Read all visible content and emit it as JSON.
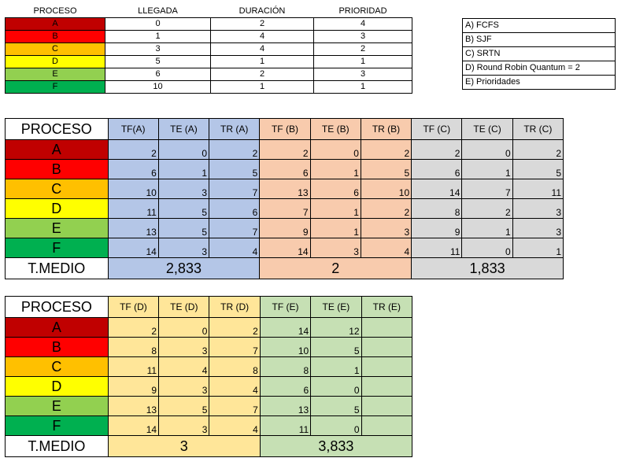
{
  "info_table": {
    "headers": [
      "PROCESO",
      "LLEGADA",
      "DURACIÓN",
      "PRIORIDAD"
    ],
    "rows": [
      {
        "proc": "A",
        "llegada": "0",
        "duracion": "2",
        "prioridad": "4",
        "color": "#c00000"
      },
      {
        "proc": "B",
        "llegada": "1",
        "duracion": "4",
        "prioridad": "3",
        "color": "#ff0000"
      },
      {
        "proc": "C",
        "llegada": "3",
        "duracion": "4",
        "prioridad": "2",
        "color": "#ffc000"
      },
      {
        "proc": "D",
        "llegada": "5",
        "duracion": "1",
        "prioridad": "1",
        "color": "#ffff00"
      },
      {
        "proc": "E",
        "llegada": "6",
        "duracion": "2",
        "prioridad": "3",
        "color": "#92d050"
      },
      {
        "proc": "F",
        "llegada": "10",
        "duracion": "1",
        "prioridad": "1",
        "color": "#00b050"
      }
    ]
  },
  "legend": [
    "A) FCFS",
    "B) SJF",
    "C) SRTN",
    "D) Round Robin Quantum = 2",
    "E) Prioridades"
  ],
  "table1": {
    "proc_header": "PROCESO",
    "headers": [
      "TF(A)",
      "TE (A)",
      "TR (A)",
      "TF (B)",
      "TE (B)",
      "TR (B)",
      "TF (C)",
      "TE (C)",
      "TR (C)"
    ],
    "rows": [
      {
        "proc": "A",
        "vals": [
          "2",
          "0",
          "2",
          "2",
          "0",
          "2",
          "2",
          "0",
          "2"
        ]
      },
      {
        "proc": "B",
        "vals": [
          "6",
          "1",
          "5",
          "6",
          "1",
          "5",
          "6",
          "1",
          "5"
        ]
      },
      {
        "proc": "C",
        "vals": [
          "10",
          "3",
          "7",
          "13",
          "6",
          "10",
          "14",
          "7",
          "11"
        ]
      },
      {
        "proc": "D",
        "vals": [
          "11",
          "5",
          "6",
          "7",
          "1",
          "2",
          "8",
          "2",
          "3"
        ]
      },
      {
        "proc": "E",
        "vals": [
          "13",
          "5",
          "7",
          "9",
          "1",
          "3",
          "9",
          "1",
          "3"
        ]
      },
      {
        "proc": "F",
        "vals": [
          "14",
          "3",
          "4",
          "14",
          "3",
          "4",
          "11",
          "0",
          "1"
        ]
      }
    ],
    "avg_label": "T.MEDIO",
    "avgs": [
      "2,833",
      "2",
      "1,833"
    ]
  },
  "table2": {
    "proc_header": "PROCESO",
    "headers": [
      "TF (D)",
      "TE (D)",
      "TR (D)",
      "TF (E)",
      "TE (E)",
      "TR (E)"
    ],
    "rows": [
      {
        "proc": "A",
        "vals": [
          "2",
          "0",
          "2",
          "14",
          "12",
          ""
        ]
      },
      {
        "proc": "B",
        "vals": [
          "8",
          "3",
          "7",
          "10",
          "5",
          ""
        ]
      },
      {
        "proc": "C",
        "vals": [
          "11",
          "4",
          "8",
          "8",
          "1",
          ""
        ]
      },
      {
        "proc": "D",
        "vals": [
          "9",
          "3",
          "4",
          "6",
          "0",
          ""
        ]
      },
      {
        "proc": "E",
        "vals": [
          "13",
          "5",
          "7",
          "13",
          "5",
          ""
        ]
      },
      {
        "proc": "F",
        "vals": [
          "14",
          "3",
          "4",
          "11",
          "0",
          ""
        ]
      }
    ],
    "avg_label": "T.MEDIO",
    "avgs": [
      "3",
      "3,833"
    ]
  },
  "colors": {
    "A": "#c00000",
    "B": "#ff0000",
    "C": "#ffc000",
    "D": "#ffff00",
    "E": "#92d050",
    "F": "#00b050",
    "group_a": "#b4c6e7",
    "group_b": "#f8cbad",
    "group_c": "#d9d9d9",
    "group_d": "#ffe699",
    "group_e": "#c6e0b4"
  }
}
